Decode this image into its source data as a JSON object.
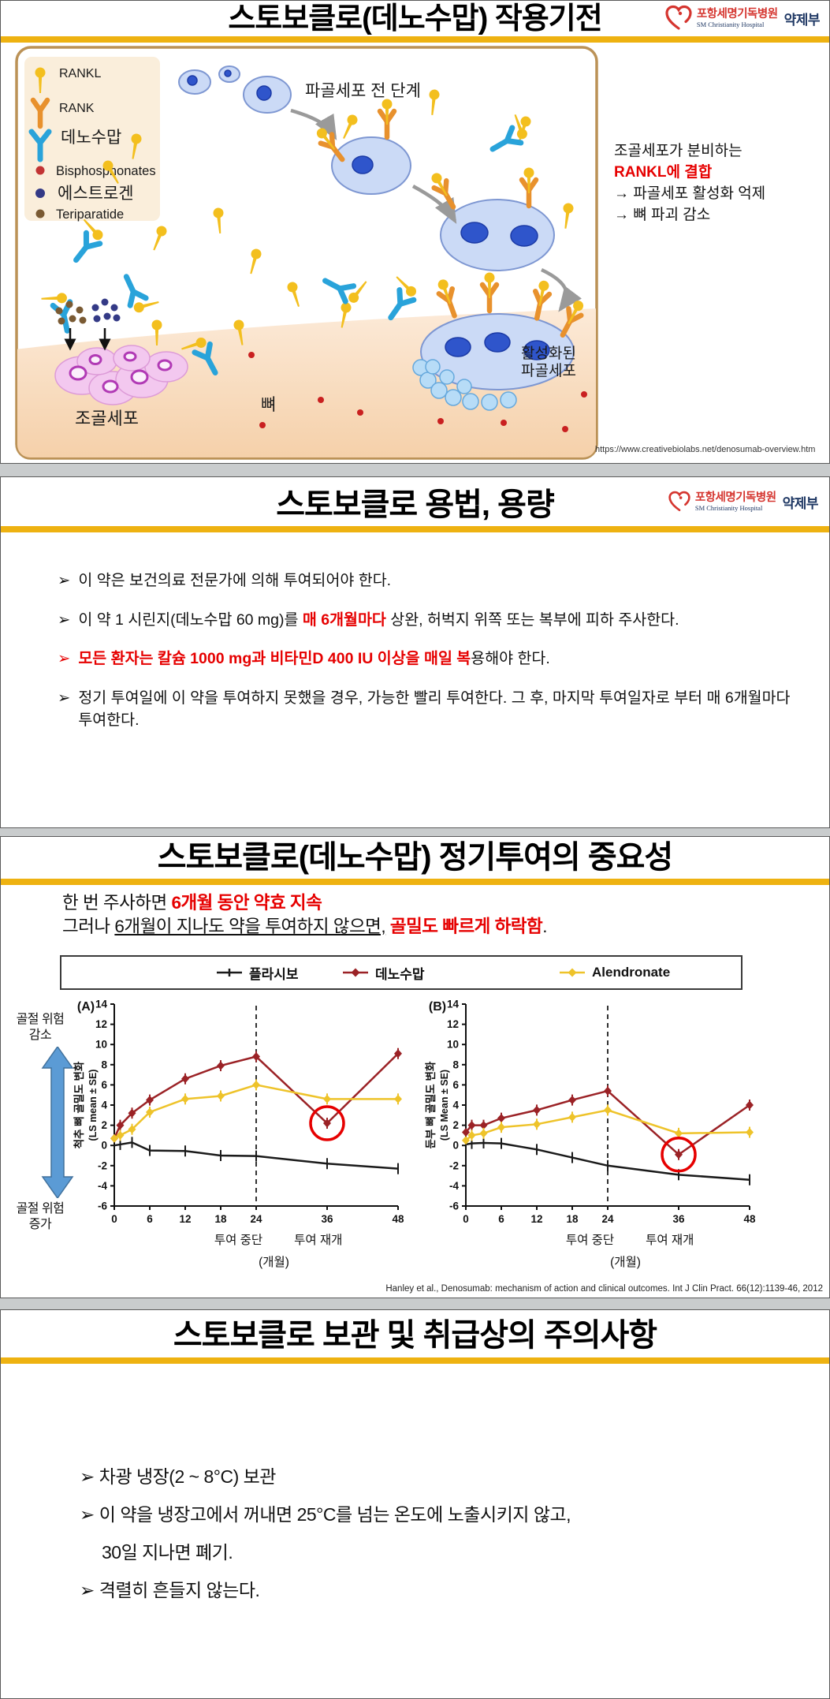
{
  "page": {
    "accent_bar_color": "#eeb211",
    "emphasis_red": "#e60000"
  },
  "logo": {
    "hospital_kr": "포항세명기독병원",
    "hospital_en": "SM Christianity Hospital",
    "department": "약제부"
  },
  "slide1": {
    "title": "스토보클로(데노수맙) 작용기전",
    "legend": [
      {
        "label": "RANKL"
      },
      {
        "label": "RANK"
      },
      {
        "label": "데노수맙"
      },
      {
        "label": "Bisphosphonates"
      },
      {
        "label": "에스트로겐"
      },
      {
        "label": "Teriparatide"
      }
    ],
    "diagram": {
      "pre_osteoclast_label": "파골세포 전 단계",
      "activated_label_line1": "활성화된",
      "activated_label_line2": "파골세포",
      "osteoblast_label": "조골세포",
      "bone_label": "뼈"
    },
    "note": {
      "line1": "조골세포가 분비하는",
      "line2": "RANKL에 결합",
      "line3": "→ 파골세포 활성화 억제",
      "line4": "→ 뼈 파괴 감소"
    },
    "source_url": "https://www.creativebiolabs.net/denosumab-overview.htm"
  },
  "slide2": {
    "title": "스토보클로 용법, 용량",
    "marker": "➢",
    "bullets": [
      {
        "red_marker": false,
        "segments": [
          {
            "t": "이 약은 보건의료 전문가에 의해 투여되어야 한다."
          }
        ]
      },
      {
        "red_marker": false,
        "segments": [
          {
            "t": "이 약 1 시린지(데노수맙 60 mg)를 "
          },
          {
            "t": "매 6개월마다",
            "red": true,
            "b": true
          },
          {
            "t": " 상완, 허벅지 위쪽 또는 복부에 피하 주사한다."
          }
        ]
      },
      {
        "red_marker": true,
        "segments": [
          {
            "t": "모든 환자는 칼슘 1000 mg과 비타민D 400 IU 이상을 매일 복",
            "red": true,
            "b": true
          },
          {
            "t": "용해야 한다."
          }
        ]
      },
      {
        "red_marker": false,
        "segments": [
          {
            "t": "정기 투여일에 이 약을 투여하지 못했을 경우, 가능한 빨리 투여한다. 그 후, 마지막 투여일자로 부터 매 6개월마다 투여한다."
          }
        ]
      }
    ]
  },
  "slide3": {
    "title": "스토보클로(데노수맙) 정기투여의 중요성",
    "intro_line1": [
      {
        "t": "한 번 주사하면 "
      },
      {
        "t": "6개월 동안 약효 지속",
        "red": true,
        "b": true
      }
    ],
    "intro_line2": [
      {
        "t": "그러나 "
      },
      {
        "t": "6개월이 지나도 약을 투여하지 않으면,",
        "u": true
      },
      {
        "t": " "
      },
      {
        "t": "골밀도 빠르게 하락함",
        "red": true,
        "b": true
      },
      {
        "t": "."
      }
    ],
    "legend": [
      {
        "label": "플라시보",
        "color": "#1a1a1a",
        "marker": "tick"
      },
      {
        "label": "데노수맙",
        "color": "#9b2226",
        "marker": "diamond"
      },
      {
        "label": "Alendronate",
        "color": "#eec32a",
        "marker": "diamond"
      }
    ],
    "fracture_risk": {
      "up_label": "골절 위험\n감소",
      "down_label": "골절 위험\n증가"
    },
    "citation": "Hanley et al., Denosumab: mechanism of action and clinical outcomes. Int J Clin Pract. 66(12):1139-46, 2012",
    "chart_data": [
      {
        "type": "line",
        "panel": "(A)",
        "ylabel_kr": "척추 뼈 골밀도 변화",
        "ylabel_en": "(LS mean ± SE)",
        "xlabel": "(개월)",
        "x": [
          0,
          1,
          3,
          6,
          12,
          18,
          24,
          36,
          48
        ],
        "xticks": [
          0,
          6,
          12,
          18,
          24,
          36,
          48
        ],
        "ylim": [
          -6,
          14
        ],
        "ytick_step": 2,
        "discontinue_x": 24,
        "annotations": {
          "stop": "투여 중단",
          "resume": "투여 재개"
        },
        "highlight": {
          "series": "데노수맙",
          "x": 36
        },
        "series": [
          {
            "name": "플라시보",
            "color": "#1a1a1a",
            "marker": "tick",
            "values": [
              0,
              0.1,
              0.3,
              -0.5,
              -0.55,
              -1.0,
              -1.05,
              -1.8,
              -2.3
            ]
          },
          {
            "name": "데노수맙",
            "color": "#9b2226",
            "marker": "diamond",
            "values": [
              0.7,
              2.0,
              3.2,
              4.5,
              6.6,
              7.9,
              8.8,
              2.2,
              9.1
            ]
          },
          {
            "name": "Alendronate",
            "color": "#eec32a",
            "marker": "diamond",
            "values": [
              0.7,
              1.0,
              1.6,
              3.3,
              4.6,
              4.9,
              6.0,
              4.6,
              4.6
            ]
          }
        ]
      },
      {
        "type": "line",
        "panel": "(B)",
        "ylabel_kr": "둔부 뼈 골밀도 변화",
        "ylabel_en": "(LS Mean ± SE)",
        "xlabel": "(개월)",
        "x": [
          0,
          1,
          3,
          6,
          12,
          18,
          24,
          36,
          48
        ],
        "xticks": [
          0,
          6,
          12,
          18,
          24,
          36,
          48
        ],
        "ylim": [
          -6,
          14
        ],
        "ytick_step": 2,
        "discontinue_x": 24,
        "annotations": {
          "stop": "투여 중단",
          "resume": "투여 재개"
        },
        "highlight": {
          "series": "데노수맙",
          "x": 36
        },
        "series": [
          {
            "name": "플라시보",
            "color": "#1a1a1a",
            "marker": "tick",
            "values": [
              0.1,
              0.2,
              0.25,
              0.2,
              -0.4,
              -1.2,
              -2.0,
              -2.9,
              -3.4
            ]
          },
          {
            "name": "데노수맙",
            "color": "#9b2226",
            "marker": "diamond",
            "values": [
              1.3,
              2.0,
              2.0,
              2.7,
              3.5,
              4.5,
              5.4,
              -0.9,
              4.0
            ]
          },
          {
            "name": "Alendronate",
            "color": "#eec32a",
            "marker": "diamond",
            "values": [
              0.5,
              1.0,
              1.2,
              1.8,
              2.1,
              2.8,
              3.5,
              1.2,
              1.3
            ]
          }
        ]
      }
    ]
  },
  "slide4": {
    "title": "스토보클로 보관 및 취급상의 주의사항",
    "marker": "➢",
    "bullets": [
      {
        "line1": "차광 냉장(2 ~ 8°C) 보관"
      },
      {
        "line1": "이 약을 냉장고에서 꺼내면 25°C를 넘는 온도에 노출시키지 않고,",
        "line2": "30일 지나면 폐기."
      },
      {
        "line1": "격렬히 흔들지 않는다."
      }
    ]
  }
}
